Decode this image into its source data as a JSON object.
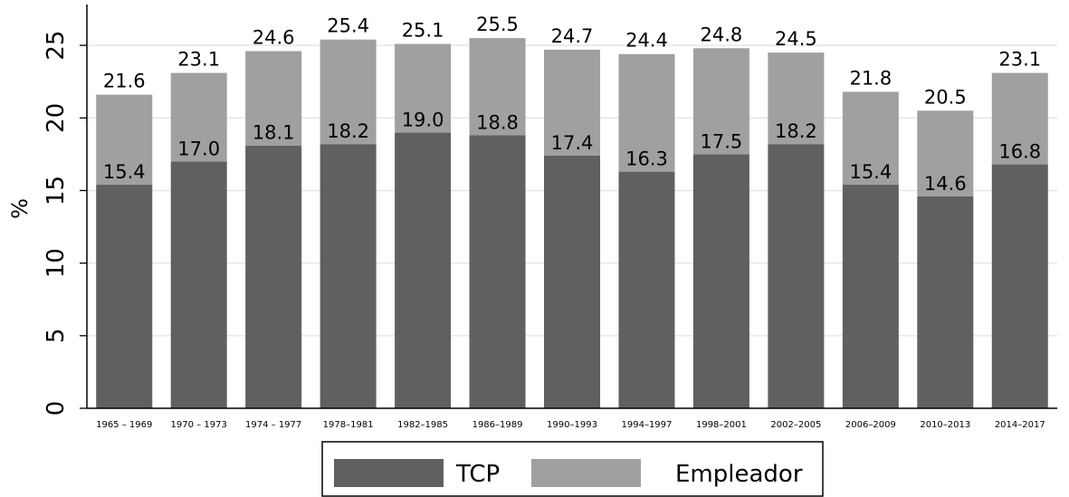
{
  "chart_data": {
    "type": "bar",
    "stacked": true,
    "title": "",
    "xlabel": "",
    "ylabel": "%",
    "ylim": [
      0,
      27.5
    ],
    "yticks": [
      0,
      5,
      10,
      15,
      20,
      25
    ],
    "grid": true,
    "legend_position": "bottom",
    "categories": [
      "1965 – 1969",
      "1970 – 1973",
      "1974 – 1977",
      "1978–1981",
      "1982–1985",
      "1986–1989",
      "1990–1993",
      "1994–1997",
      "1998–2001",
      "2002–2005",
      "2006–2009",
      "2010–2013",
      "2014–2017"
    ],
    "series": [
      {
        "name": "TCP",
        "color": "#606060",
        "values": [
          15.4,
          17.0,
          18.1,
          18.2,
          19.0,
          18.8,
          17.4,
          16.3,
          17.5,
          18.2,
          15.4,
          14.6,
          16.8
        ]
      },
      {
        "name": "Empleador",
        "color": "#a0a0a0",
        "values": [
          6.2,
          6.1,
          6.5,
          7.2,
          6.1,
          6.7,
          7.3,
          8.1,
          7.3,
          6.3,
          6.4,
          5.9,
          6.3
        ]
      }
    ],
    "series_labels": [
      "15.4",
      "17.0",
      "18.1",
      "18.2",
      "19.0",
      "18.8",
      "17.4",
      "16.3",
      "17.5",
      "18.2",
      "15.4",
      "14.6",
      "16.8"
    ],
    "total_labels": [
      "21.6",
      "23.1",
      "24.6",
      "25.4",
      "25.1",
      "25.5",
      "24.7",
      "24.4",
      "24.8",
      "24.5",
      "21.8",
      "20.5",
      "23.1"
    ],
    "totals": [
      21.6,
      23.1,
      24.6,
      25.4,
      25.1,
      25.5,
      24.7,
      24.4,
      24.8,
      24.5,
      21.8,
      20.5,
      23.1
    ]
  }
}
